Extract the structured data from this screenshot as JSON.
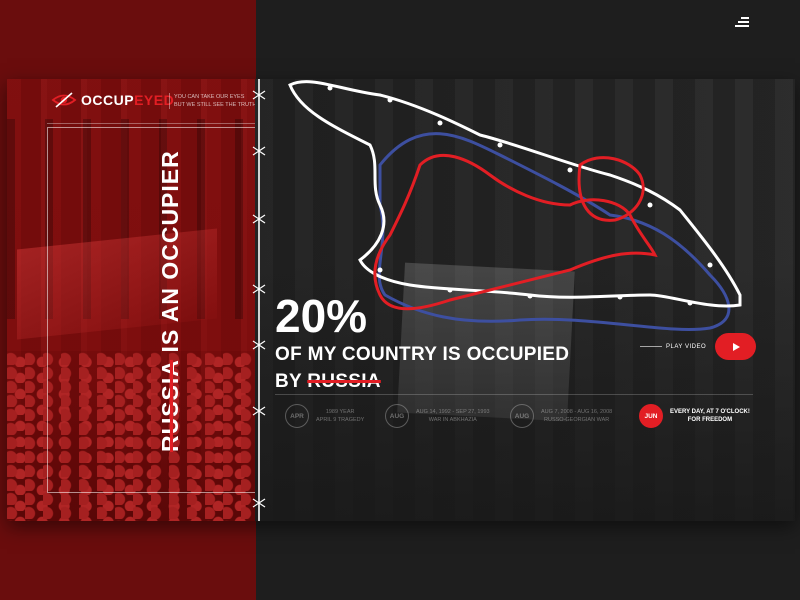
{
  "brand": {
    "name_primary": "OCCUP",
    "name_accent": "EYED",
    "tagline_line1": "YOU CAN TAKE OUR EYES",
    "tagline_line2": "BUT WE STILL SEE THE TRUTH"
  },
  "side_title": {
    "struck_word": "RUSSIA",
    "rest": " IS AN OCCUPIER"
  },
  "hero": {
    "percent": "20%",
    "line1": "OF MY COUNTRY IS OCCUPIED",
    "line2_prefix": "BY ",
    "line2_struck": "RUSSIA"
  },
  "video": {
    "label": "PLAY VIDEO"
  },
  "timeline": [
    {
      "month": "APR",
      "line1": "1989 YEAR",
      "line2": "APRIL 9 TRAGEDY"
    },
    {
      "month": "AUG",
      "line1": "AUG 14, 1992 - SEP 27, 1993",
      "line2": "WAR IN ABKHAZIA"
    },
    {
      "month": "AUG",
      "line1": "AUG 7, 2008 - AUG 16, 2008",
      "line2": "RUSSO-GEORGIAN WAR"
    },
    {
      "month": "JUN",
      "line1": "EVERY DAY, AT 7 O'CLOCK!",
      "line2": "FOR FREEDOM"
    }
  ],
  "colors": {
    "accent": "#e21e24",
    "left_panel": "#6a0d0d",
    "background": "#1e1e1e",
    "map_white": "#ffffff",
    "map_red": "#e21e24",
    "map_blue": "#3d4fa0"
  },
  "icons": {
    "logo": "crossed-eye-icon",
    "menu": "hamburger-menu-icon",
    "play": "play-icon"
  }
}
